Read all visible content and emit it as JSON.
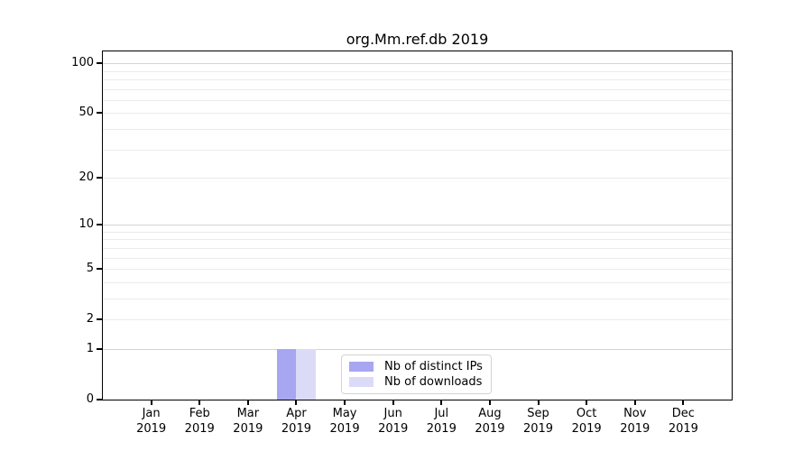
{
  "chart_data": {
    "type": "bar",
    "title": "org.Mm.ref.db 2019",
    "categories": [
      "Jan",
      "Feb",
      "Mar",
      "Apr",
      "May",
      "Jun",
      "Jul",
      "Aug",
      "Sep",
      "Oct",
      "Nov",
      "Dec"
    ],
    "category_year": "2019",
    "series": [
      {
        "name": "Nb of distinct IPs",
        "color": "#a6a6f1",
        "values": [
          0,
          0,
          0,
          1,
          0,
          0,
          0,
          0,
          0,
          0,
          0,
          0
        ]
      },
      {
        "name": "Nb of downloads",
        "color": "#dbdbf8",
        "values": [
          0,
          0,
          0,
          1,
          0,
          0,
          0,
          0,
          0,
          0,
          0,
          0
        ]
      }
    ],
    "xlabel": "",
    "ylabel": "",
    "y_scale": "log1p",
    "ylim": [
      0,
      118
    ],
    "y_ticks": [
      0,
      1,
      2,
      5,
      10,
      20,
      50,
      100
    ],
    "y_major_gridlines": [
      1,
      10,
      100
    ],
    "y_minor_gridlines": [
      2,
      3,
      4,
      5,
      6,
      7,
      8,
      9,
      20,
      30,
      40,
      50,
      60,
      70,
      80,
      90
    ],
    "grid": "horizontal",
    "legend_position": "inside-lower-center",
    "colors": {
      "grid_major": "#d4d4d4",
      "grid_minor": "#ebebeb",
      "axis": "#000000"
    }
  }
}
